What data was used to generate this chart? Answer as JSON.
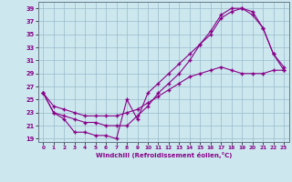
{
  "xlabel": "Windchill (Refroidissement éolien,°C)",
  "bg_color": "#cce8ee",
  "line_color": "#880088",
  "grid_color": "#99bbcc",
  "xlim": [
    -0.5,
    23.5
  ],
  "ylim": [
    18.5,
    40
  ],
  "xticks": [
    0,
    1,
    2,
    3,
    4,
    5,
    6,
    7,
    8,
    9,
    10,
    11,
    12,
    13,
    14,
    15,
    16,
    17,
    18,
    19,
    20,
    21,
    22,
    23
  ],
  "yticks": [
    19,
    21,
    23,
    25,
    27,
    29,
    31,
    33,
    35,
    37,
    39
  ],
  "line1_x": [
    0,
    1,
    2,
    3,
    4,
    5,
    6,
    7,
    8,
    9,
    10,
    11,
    12,
    13,
    14,
    15,
    16,
    17,
    18,
    19,
    20,
    21,
    22,
    23
  ],
  "line1_y": [
    26,
    23,
    22,
    20,
    20,
    19.5,
    19.5,
    19,
    25,
    22,
    26,
    27.5,
    29,
    30.5,
    32,
    33.5,
    35.5,
    38,
    39,
    39,
    38,
    36,
    32,
    30
  ],
  "line2_x": [
    0,
    1,
    2,
    3,
    4,
    5,
    6,
    7,
    8,
    9,
    10,
    11,
    12,
    13,
    14,
    15,
    16,
    17,
    18,
    19,
    20,
    21,
    22,
    23
  ],
  "line2_y": [
    26,
    23,
    22.5,
    22,
    21.5,
    21.5,
    21,
    21,
    21,
    22.5,
    24,
    26,
    27.5,
    29,
    31,
    33.5,
    35,
    37.5,
    38.5,
    39,
    38.5,
    36,
    32,
    29.5
  ],
  "line3_x": [
    0,
    1,
    2,
    3,
    4,
    5,
    6,
    7,
    8,
    9,
    10,
    11,
    12,
    13,
    14,
    15,
    16,
    17,
    18,
    19,
    20,
    21,
    22,
    23
  ],
  "line3_y": [
    26,
    24,
    23.5,
    23,
    22.5,
    22.5,
    22.5,
    22.5,
    23,
    23.5,
    24.5,
    25.5,
    26.5,
    27.5,
    28.5,
    29,
    29.5,
    30,
    29.5,
    29,
    29,
    29,
    29.5,
    29.5
  ]
}
